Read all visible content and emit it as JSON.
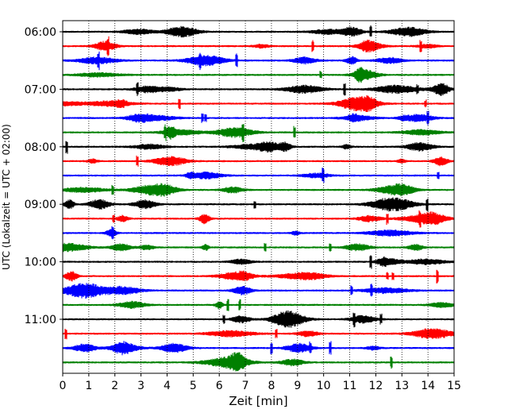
{
  "chart_data": {
    "type": "line",
    "xlabel": "Zeit  [min]",
    "ylabel": "UTC (Lokalzeit = UTC + 02:00)",
    "xlim": [
      0,
      15
    ],
    "x_ticks": [
      "0",
      "1",
      "2",
      "3",
      "4",
      "5",
      "6",
      "7",
      "8",
      "9",
      "10",
      "11",
      "12",
      "13",
      "14",
      "15"
    ],
    "y_tick_labels": [
      "06:00",
      "07:00",
      "08:00",
      "09:00",
      "10:00",
      "11:00"
    ],
    "grid": "vertical-dotted",
    "trace_interval_minutes": 15,
    "row_colors": [
      "#000000",
      "#ff0000",
      "#0000ff",
      "#008000"
    ],
    "row_starts": [
      "06:00",
      "06:15",
      "06:30",
      "06:45",
      "07:00",
      "07:15",
      "07:30",
      "07:45",
      "08:00",
      "08:15",
      "08:30",
      "08:45",
      "09:00",
      "09:15",
      "09:30",
      "09:45",
      "10:00",
      "10:15",
      "10:30",
      "10:45",
      "11:00",
      "11:15",
      "11:30",
      "11:45"
    ]
  }
}
